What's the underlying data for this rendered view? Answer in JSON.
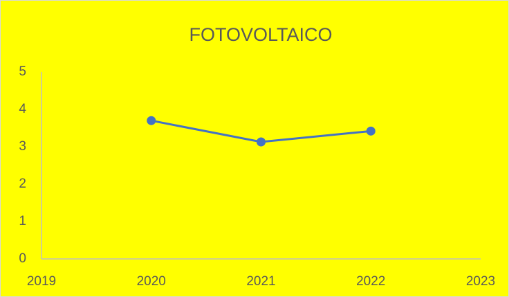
{
  "chart_data": {
    "type": "line",
    "title": "FOTOVOLTAICO",
    "x": [
      2020,
      2021,
      2022
    ],
    "values": [
      3.7,
      3.13,
      3.42
    ],
    "color": "#4472c4",
    "xlim": [
      2019,
      2023
    ],
    "xticks": [
      2019,
      2020,
      2021,
      2022,
      2023
    ],
    "ylim": [
      0,
      5
    ],
    "yticks": [
      0,
      1,
      2,
      3,
      4,
      5
    ],
    "grid": false,
    "background": "#ffff00"
  }
}
